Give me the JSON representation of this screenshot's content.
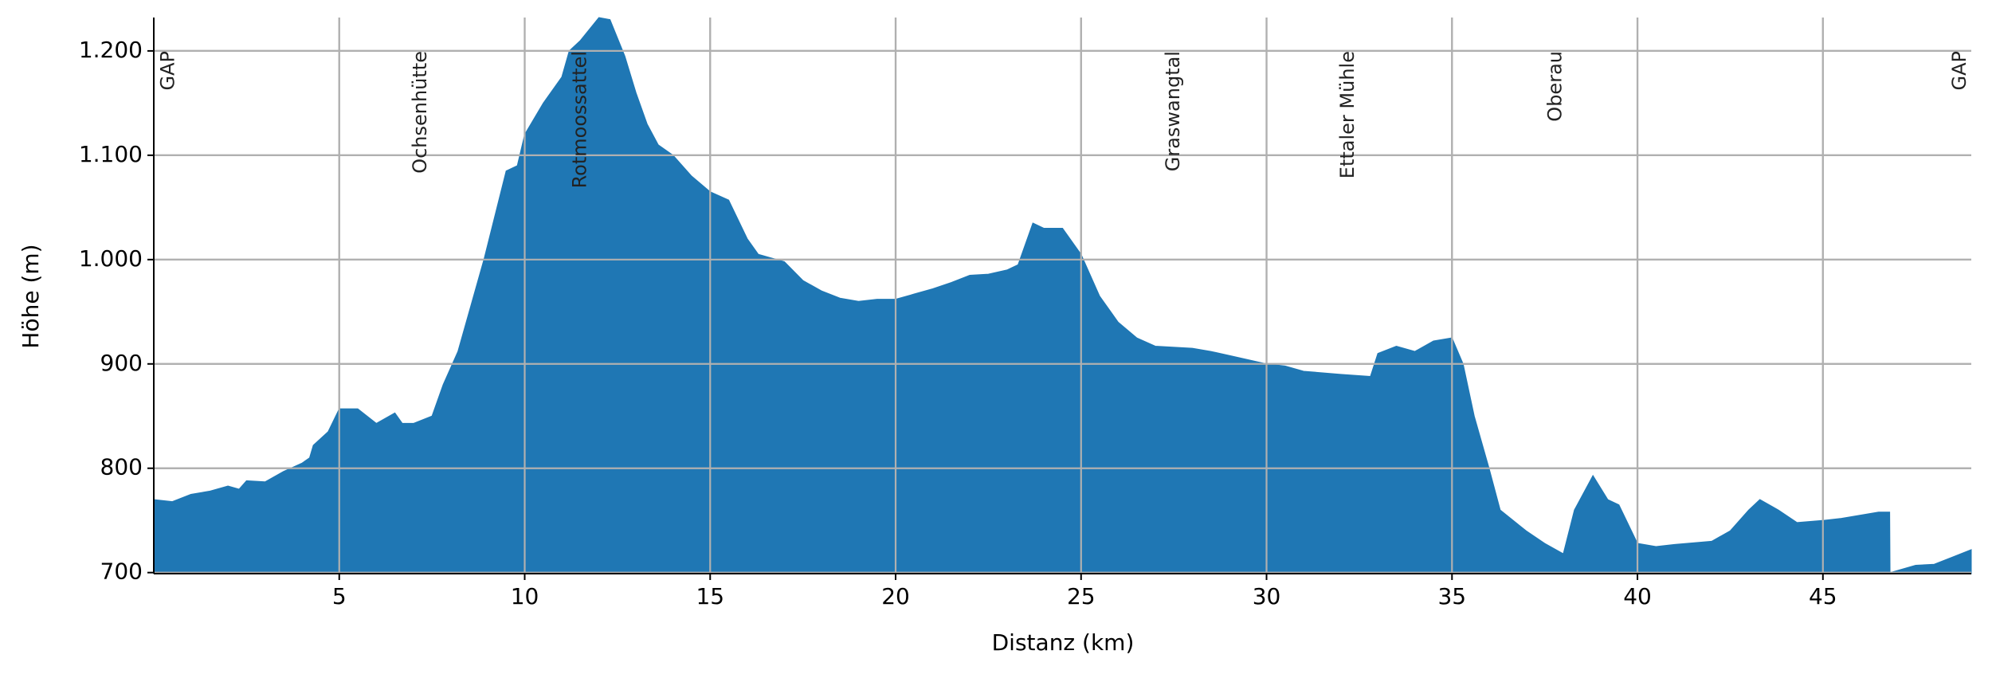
{
  "chart_data": {
    "type": "area",
    "xlabel": "Distanz (km)",
    "ylabel": "Höhe (m)",
    "color": "#1f77b4",
    "grid": true,
    "xlim": [
      0,
      49
    ],
    "ylim": [
      699,
      1232
    ],
    "xticks": [
      5,
      10,
      15,
      20,
      25,
      30,
      35,
      40,
      45
    ],
    "yticks": [
      700,
      800,
      900,
      {
        "value": 1000,
        "label": "1.000"
      },
      {
        "value": 1100,
        "label": "1.100"
      },
      {
        "value": 1200,
        "label": "1.200"
      }
    ],
    "x": [
      0,
      0.5,
      1,
      1.5,
      2,
      2.3,
      2.5,
      3,
      3.5,
      4,
      4.2,
      4.3,
      4.7,
      5,
      5.5,
      6,
      6.5,
      6.7,
      7,
      7.5,
      7.8,
      8.2,
      8.9,
      9.5,
      9.8,
      10,
      10.5,
      11,
      11.2,
      11.5,
      12,
      12.3,
      12.7,
      13,
      13.3,
      13.6,
      14,
      14.5,
      15,
      15.5,
      16,
      16.3,
      17,
      17.5,
      18,
      18.5,
      19,
      19.5,
      20,
      20.5,
      21,
      21.5,
      22,
      22.5,
      23,
      23.3,
      23.7,
      24,
      24.5,
      25,
      25.5,
      26,
      26.5,
      27,
      28,
      28.5,
      29,
      30,
      30.5,
      31,
      32,
      32.8,
      33,
      33.5,
      34,
      34.5,
      35,
      35.3,
      35.6,
      36,
      36.3,
      37,
      37.5,
      38,
      38.3,
      38.8,
      39.2,
      39.5,
      40,
      40.5,
      41,
      42,
      42.5,
      43,
      43.3,
      43.8,
      44.3,
      45,
      45.5,
      46.5,
      46.8,
      46.81,
      47.5,
      48,
      48.5,
      49
    ],
    "values": [
      770,
      768,
      775,
      778,
      783,
      780,
      788,
      787,
      797,
      805,
      810,
      822,
      835,
      857,
      857,
      843,
      853,
      843,
      843,
      850,
      880,
      912,
      1000,
      1085,
      1090,
      1120,
      1150,
      1175,
      1200,
      1210,
      1232,
      1230,
      1195,
      1160,
      1130,
      1110,
      1100,
      1080,
      1065,
      1057,
      1020,
      1005,
      998,
      980,
      970,
      963,
      960,
      962,
      962,
      967,
      972,
      978,
      985,
      986,
      990,
      995,
      1035,
      1030,
      1030,
      1005,
      965,
      940,
      925,
      917,
      915,
      912,
      908,
      900,
      898,
      893,
      890,
      888,
      910,
      917,
      912,
      922,
      925,
      900,
      850,
      800,
      760,
      740,
      728,
      718,
      760,
      793,
      770,
      765,
      728,
      725,
      727,
      730,
      740,
      760,
      770,
      760,
      748,
      750,
      752,
      758,
      758,
      700,
      707,
      708,
      715,
      722
    ],
    "annotations": [
      {
        "x": 0.4,
        "text": "GAP"
      },
      {
        "x": 7.2,
        "text": "Ochsenhütte"
      },
      {
        "x": 11.5,
        "text": "Rotmoossattel"
      },
      {
        "x": 27.5,
        "text": "Graswangtal"
      },
      {
        "x": 32.2,
        "text": "Ettaler Mühle"
      },
      {
        "x": 37.8,
        "text": "Oberau"
      },
      {
        "x": 48.7,
        "text": "GAP"
      }
    ]
  }
}
